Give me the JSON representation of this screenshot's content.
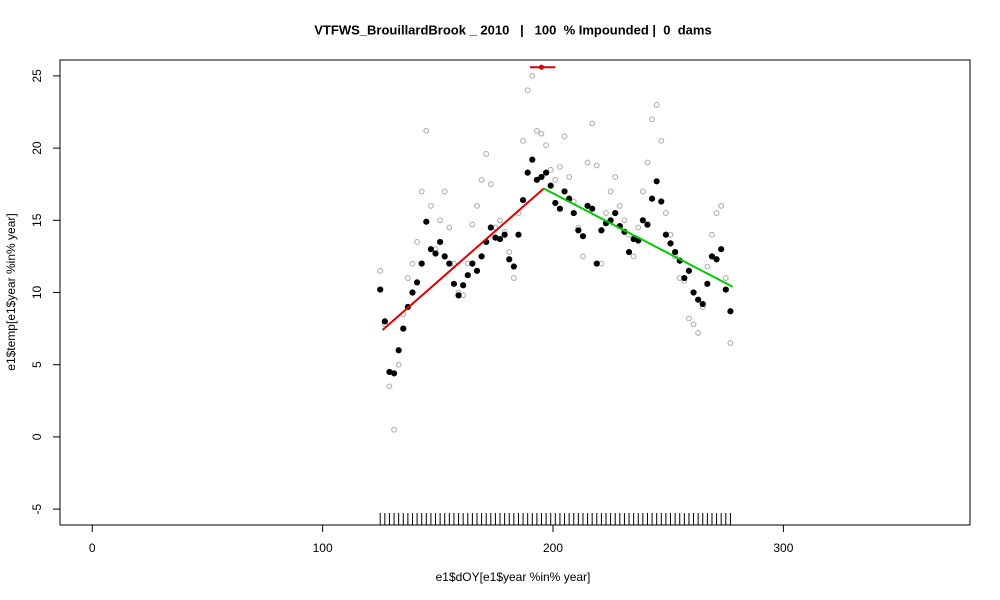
{
  "chart_data": {
    "type": "scatter",
    "title": "VTFWS_BrouillardBrook _ 2010   |   100  % Impounded |  0  dams",
    "x_label": "e1$dOY[e1$year %in% year]",
    "y_label": "e1$temp[e1$year %in% year]",
    "xlim": [
      -14,
      381
    ],
    "ylim": [
      -6.1,
      26.1
    ],
    "xticks": [
      0,
      100,
      200,
      300
    ],
    "yticks": [
      -5,
      0,
      5,
      10,
      15,
      20,
      25
    ],
    "x": [
      125,
      127,
      129,
      131,
      133,
      135,
      137,
      139,
      141,
      143,
      145,
      147,
      149,
      151,
      153,
      155,
      157,
      159,
      161,
      163,
      165,
      167,
      169,
      171,
      173,
      175,
      177,
      179,
      181,
      183,
      185,
      187,
      189,
      191,
      193,
      195,
      197,
      199,
      201,
      203,
      205,
      207,
      209,
      211,
      213,
      215,
      217,
      219,
      221,
      223,
      225,
      227,
      229,
      231,
      233,
      235,
      237,
      239,
      241,
      243,
      245,
      247,
      249,
      251,
      253,
      255,
      257,
      259,
      261,
      263,
      265,
      267,
      269,
      271,
      273,
      275,
      277
    ],
    "series": [
      {
        "color": "#aaaaaa",
        "marker": "open",
        "values": [
          11.5,
          7.8,
          3.5,
          0.5,
          5,
          8.5,
          11,
          12,
          13.5,
          17,
          21.2,
          16,
          13,
          15,
          17,
          14.5,
          12,
          10,
          9.8,
          12,
          14.7,
          16,
          17.8,
          19.6,
          17.5,
          14.5,
          15,
          14.2,
          12.8,
          11,
          15.5,
          20.5,
          24,
          25,
          21.2,
          21,
          20.2,
          18.5,
          17.8,
          18.7,
          20.8,
          18,
          16.3,
          14.5,
          12.5,
          19,
          21.7,
          18.8,
          12,
          15.5,
          17,
          18,
          16,
          15,
          14,
          12.5,
          14.5,
          17,
          19,
          22,
          23,
          20.5,
          15.5,
          14,
          12.5,
          11,
          10.8,
          8.2,
          7.8,
          7.2,
          9,
          11.8,
          14,
          15.5,
          16,
          11,
          6.5
        ]
      },
      {
        "color": "#000000",
        "marker": "filled",
        "values": [
          10.2,
          8,
          4.5,
          4.4,
          6,
          7.5,
          9,
          10,
          10.7,
          12,
          14.9,
          13,
          12.7,
          13.5,
          12.5,
          12,
          10.6,
          9.8,
          10.5,
          11.2,
          12,
          11.5,
          12.5,
          13.5,
          14.5,
          13.8,
          13.7,
          14,
          12.3,
          11.8,
          14,
          16.4,
          18.3,
          19.2,
          17.8,
          18,
          18.3,
          17.4,
          16.2,
          15.8,
          17,
          16.5,
          15.5,
          14.3,
          13.9,
          16,
          15.8,
          12,
          14.3,
          14.8,
          15,
          15.5,
          14.6,
          14.2,
          12.8,
          13.7,
          13.6,
          15,
          14.7,
          16.5,
          17.7,
          16.3,
          14,
          13.4,
          12.8,
          12.2,
          11,
          11.5,
          10,
          9.5,
          9.2,
          10.6,
          12.5,
          12.3,
          13,
          10.2,
          8.7
        ]
      }
    ],
    "lines": [
      {
        "color": "#e00000",
        "x": [
          126,
          196
        ],
        "values": [
          7.4,
          17.2
        ]
      },
      {
        "color": "#00cc00",
        "x": [
          196,
          278
        ],
        "values": [
          17.2,
          10.4
        ]
      }
    ],
    "peak": {
      "color": "#e00000",
      "x": 195,
      "y": 25.6,
      "xmin": 190,
      "xmax": 201
    },
    "rug": true
  }
}
